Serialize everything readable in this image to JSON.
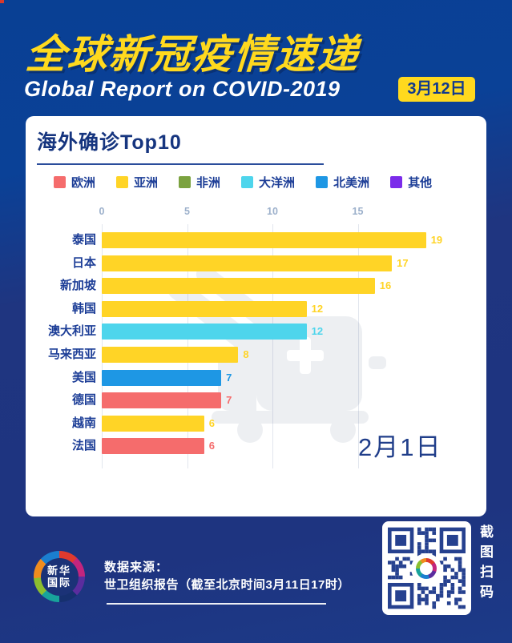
{
  "poster": {
    "title_cn": "全球新冠疫情速递",
    "title_en": "Global Report on COVID-2019",
    "date_badge": "3月12日"
  },
  "card": {
    "title": "海外确诊Top10"
  },
  "legend": [
    {
      "label": "欧洲",
      "color": "#f56c6c"
    },
    {
      "label": "亚洲",
      "color": "#ffd426"
    },
    {
      "label": "非洲",
      "color": "#7ba23f"
    },
    {
      "label": "大洋洲",
      "color": "#4ed5ec"
    },
    {
      "label": "北美洲",
      "color": "#1e97e4"
    },
    {
      "label": "其他",
      "color": "#7b2bea"
    }
  ],
  "chart_data": {
    "type": "bar",
    "orientation": "horizontal",
    "title": "海外确诊Top10",
    "date_label": "2月1日",
    "x_ticks": [
      0,
      5,
      10,
      15
    ],
    "xlim": [
      0,
      22.5
    ],
    "grid": true,
    "categories": [
      "泰国",
      "日本",
      "新加坡",
      "韩国",
      "澳大利亚",
      "马来西亚",
      "美国",
      "德国",
      "越南",
      "法国"
    ],
    "values": [
      19,
      17,
      16,
      12,
      12,
      8,
      7,
      7,
      6,
      6
    ],
    "regions": [
      "亚洲",
      "亚洲",
      "亚洲",
      "亚洲",
      "大洋洲",
      "亚洲",
      "北美洲",
      "欧洲",
      "亚洲",
      "欧洲"
    ],
    "bar_colors": [
      "#ffd426",
      "#ffd426",
      "#ffd426",
      "#ffd426",
      "#4ed5ec",
      "#ffd426",
      "#1e97e4",
      "#f56c6c",
      "#ffd426",
      "#f56c6c"
    ]
  },
  "footer": {
    "logo_line1": "新华",
    "logo_line2": "国际",
    "source_label": "数据来源：",
    "source_detail": "世卫组织报告（截至北京时间3月11日17时）",
    "qr_caption": "截图扫码"
  },
  "colors": {
    "background_top": "#0a4197",
    "background_bottom": "#1e3480",
    "accent_yellow": "#ffd91e",
    "navy_text": "#1d3e97",
    "tick_label": "#9cb0cb",
    "gridline": "#e2e6ee",
    "card_background": "#ffffff"
  }
}
